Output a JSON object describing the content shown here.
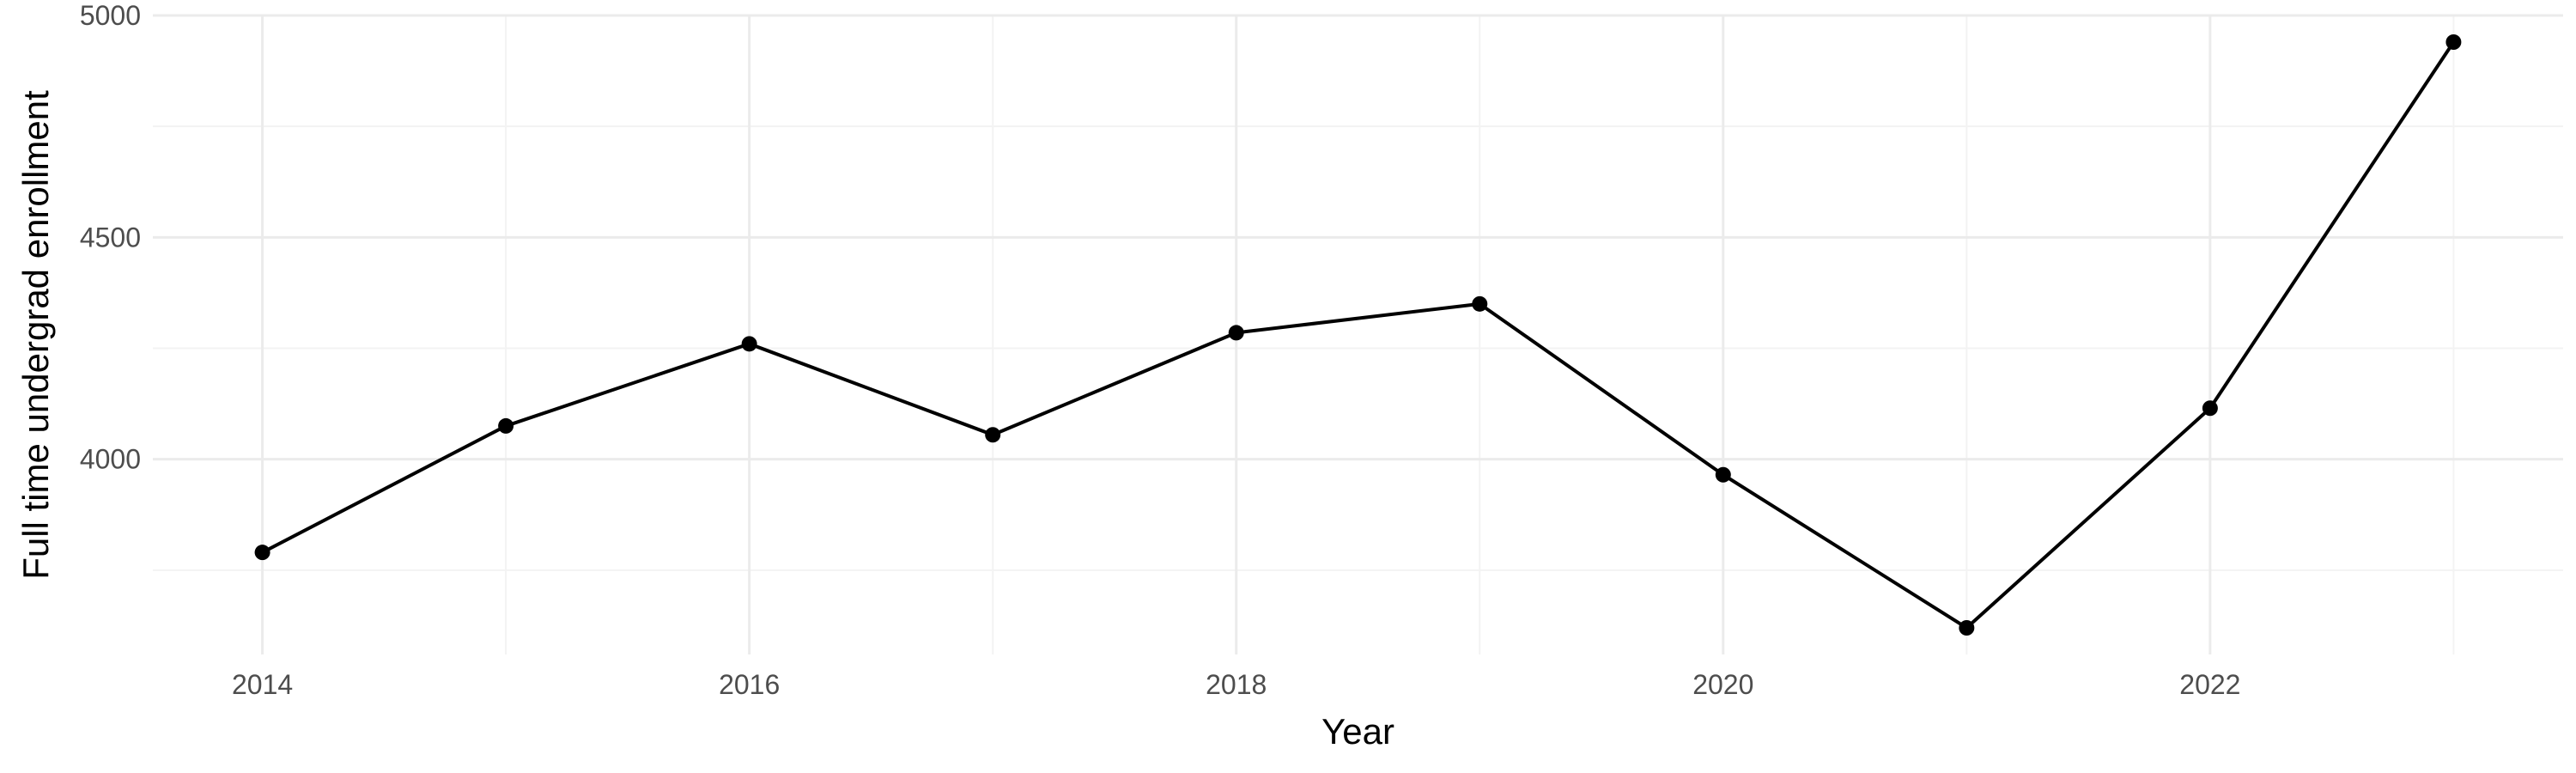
{
  "chart_data": {
    "type": "line",
    "title": "",
    "xlabel": "Year",
    "ylabel": "Full time undergrad enrollment",
    "x": [
      2014,
      2015,
      2016,
      2017,
      2018,
      2019,
      2020,
      2021,
      2022,
      2023
    ],
    "series": [
      {
        "values": [
          3790,
          4075,
          4260,
          4055,
          4285,
          4350,
          3965,
          3620,
          4115,
          4940
        ]
      }
    ],
    "xlim": [
      2013.55,
      2023.45
    ],
    "ylim": [
      3560,
      5000
    ],
    "x_ticks": [
      2014,
      2016,
      2018,
      2020,
      2022
    ],
    "x_tick_labels": [
      "2014",
      "2016",
      "2018",
      "2020",
      "2022"
    ],
    "y_ticks": [
      4000,
      4500,
      5000
    ],
    "y_tick_labels": [
      "4000",
      "4500",
      "5000"
    ],
    "x_minor_ticks": [
      2015,
      2017,
      2019,
      2021,
      2023
    ],
    "y_minor_ticks": [
      3750,
      4250,
      4750
    ],
    "grid": true,
    "legend": "none",
    "colors": {
      "line": "#000000",
      "point": "#000000",
      "grid_major": "#ebebeb",
      "grid_minor": "#f3f3f3",
      "tick_text": "#4d4d4d",
      "axis_title": "#000000"
    }
  }
}
